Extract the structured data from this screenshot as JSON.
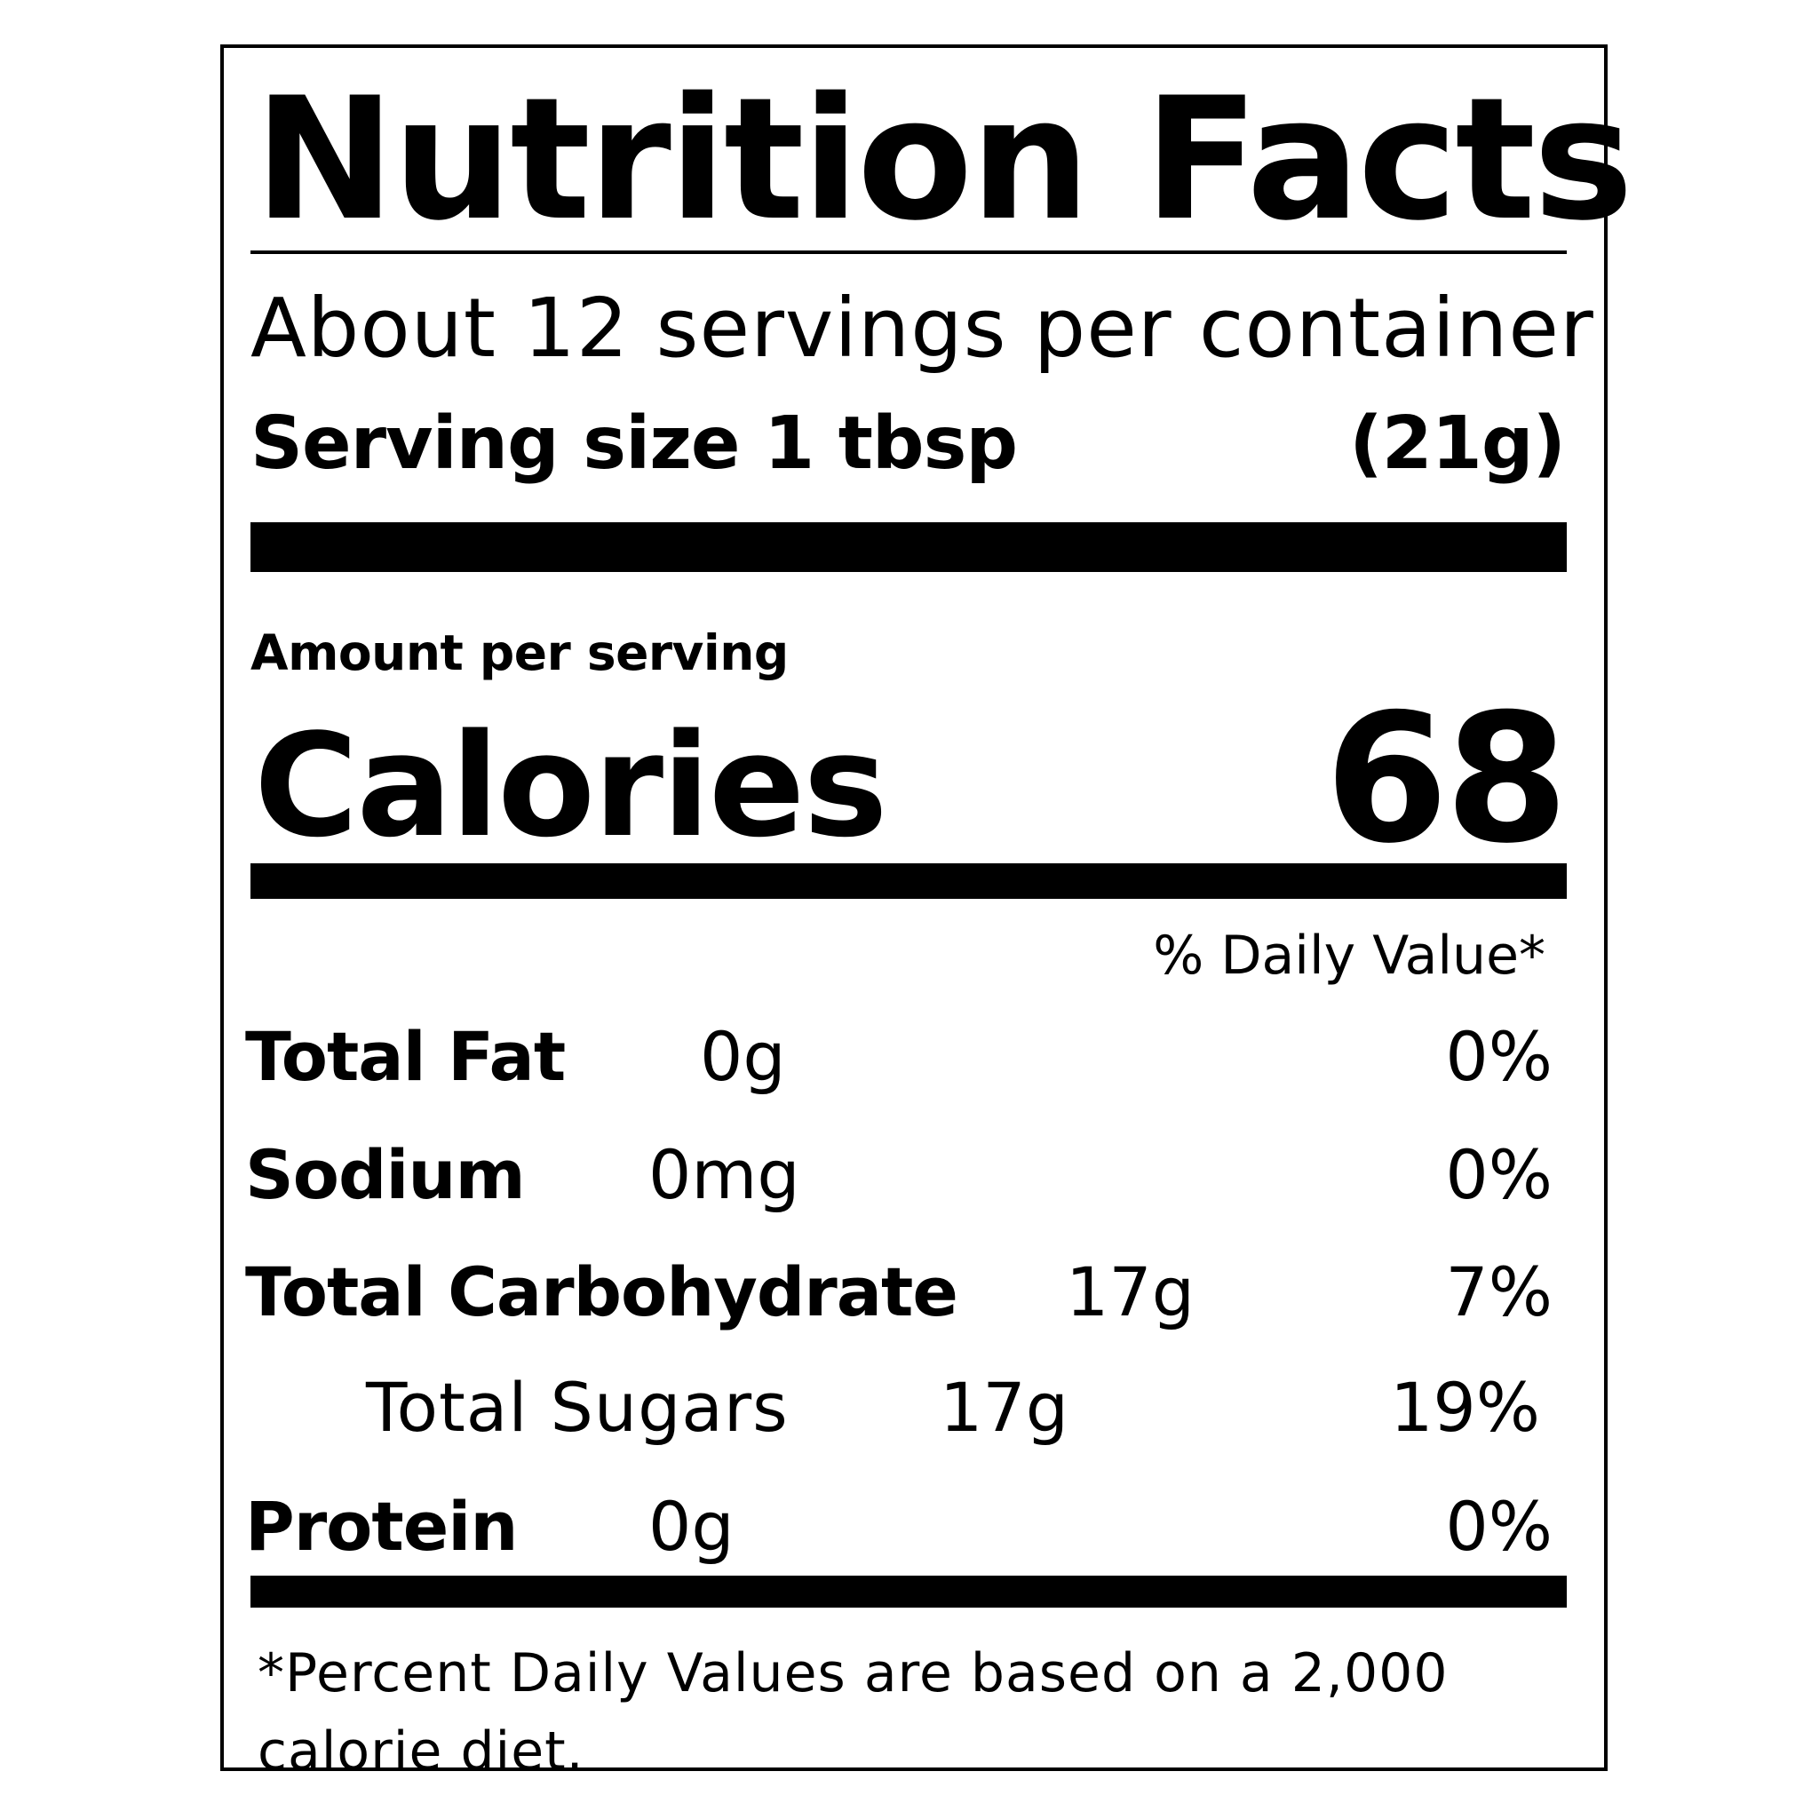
{
  "label": {
    "title": "Nutrition Facts",
    "servings_per_container": "About 12 servings per container",
    "serving_size_label": "Serving size 1 tbsp",
    "serving_size_value": "(21g)",
    "amount_per_serving": "Amount per serving",
    "calories_label": "Calories",
    "calories_value": "68",
    "daily_value_header": "% Daily Value*",
    "nutrients": [
      {
        "name": "Total Fat",
        "amount": "0g",
        "dv": "0%"
      },
      {
        "name": "Sodium",
        "amount": "0mg",
        "dv": "0%"
      },
      {
        "name": "Total Carbohydrate",
        "amount": "17g",
        "dv": "7%"
      },
      {
        "name": "Total Sugars",
        "amount": "17g",
        "dv": "19%"
      },
      {
        "name": "Protein",
        "amount": "0g",
        "dv": "0%"
      }
    ],
    "footnote": "*Percent Daily Values are based on a 2,000 calorie diet."
  }
}
